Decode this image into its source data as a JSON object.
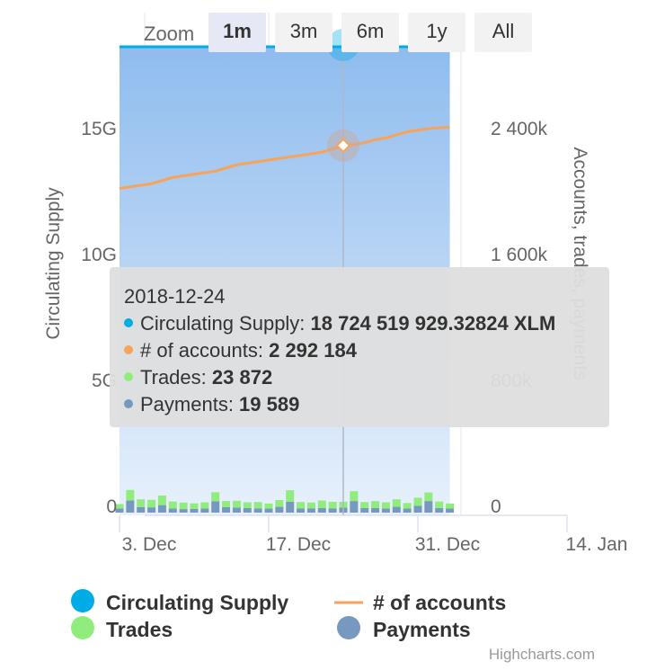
{
  "zoom": {
    "label": "Zoom",
    "buttons": [
      "1m",
      "3m",
      "6m",
      "1y",
      "All"
    ],
    "selected": "1m"
  },
  "colors": {
    "supply": "#00ace6",
    "accounts": "#f7a35c",
    "trades": "#90ed7d",
    "payments": "#7798bf",
    "area_top": "#8fbcee",
    "area_bottom": "#e8f1fc"
  },
  "chart_data": {
    "type": "line",
    "x_axis": {
      "ticks": [
        "3. Dec",
        "17. Dec",
        "31. Dec",
        "14. Jan"
      ],
      "range": [
        "2018-12-03",
        "2019-01-14"
      ]
    },
    "y_axis_left": {
      "title": "Circulating Supply",
      "ticks": [
        "0",
        "5G",
        "10G",
        "15G"
      ],
      "range": [
        0,
        20000000000
      ]
    },
    "y_axis_right": {
      "title": "Accounts, trades, payments",
      "ticks": [
        "0",
        "800k",
        "1 600k",
        "2 400k"
      ],
      "range": [
        0,
        3200000
      ]
    },
    "x": [
      "2018-12-03",
      "2018-12-04",
      "2018-12-05",
      "2018-12-06",
      "2018-12-07",
      "2018-12-08",
      "2018-12-09",
      "2018-12-10",
      "2018-12-11",
      "2018-12-12",
      "2018-12-13",
      "2018-12-14",
      "2018-12-15",
      "2018-12-16",
      "2018-12-17",
      "2018-12-18",
      "2018-12-19",
      "2018-12-20",
      "2018-12-21",
      "2018-12-22",
      "2018-12-23",
      "2018-12-24",
      "2018-12-25",
      "2018-12-26",
      "2018-12-27",
      "2018-12-28",
      "2018-12-29",
      "2018-12-30",
      "2018-12-31",
      "2019-01-01",
      "2019-01-02",
      "2019-01-03"
    ],
    "series": [
      {
        "name": "Circulating Supply",
        "axis": "left",
        "type": "area",
        "values": [
          18724000000,
          18724000000,
          18724000000,
          18724000000,
          18724000000,
          18724000000,
          18724000000,
          18724000000,
          18724000000,
          18724000000,
          18724000000,
          18724000000,
          18724000000,
          18724000000,
          18724000000,
          18724000000,
          18724000000,
          18724000000,
          18724000000,
          18724000000,
          18724000000,
          18724519929,
          18724600000,
          18724600000,
          18724600000,
          18724600000,
          18724600000,
          18724600000,
          18724600000,
          18724600000,
          18724600000,
          18724600000
        ]
      },
      {
        "name": "# of accounts",
        "axis": "right",
        "type": "line",
        "values": [
          2020000,
          2030000,
          2040000,
          2050000,
          2070000,
          2090000,
          2100000,
          2110000,
          2120000,
          2130000,
          2150000,
          2170000,
          2180000,
          2190000,
          2200000,
          2210000,
          2220000,
          2230000,
          2240000,
          2250000,
          2270000,
          2292184,
          2300000,
          2310000,
          2330000,
          2340000,
          2360000,
          2380000,
          2390000,
          2400000,
          2405000,
          2410000
        ]
      },
      {
        "name": "Trades",
        "axis": "right",
        "type": "column",
        "stacking": "normal",
        "values": [
          18000,
          42000,
          31000,
          30000,
          38000,
          28000,
          26000,
          22000,
          25000,
          36000,
          24000,
          27000,
          23000,
          25000,
          20000,
          27000,
          46000,
          26000,
          23000,
          30000,
          26000,
          23872,
          39000,
          24000,
          28000,
          25000,
          30000,
          22000,
          32000,
          34000,
          26000,
          20000
        ]
      },
      {
        "name": "Payments",
        "axis": "right",
        "type": "column",
        "stacking": "normal",
        "values": [
          16000,
          48000,
          22000,
          21000,
          30000,
          16000,
          14000,
          15000,
          16000,
          45000,
          22000,
          20000,
          18000,
          17000,
          16000,
          23000,
          43000,
          16000,
          17000,
          18000,
          17000,
          19589,
          46000,
          18000,
          18000,
          16000,
          23000,
          16000,
          27000,
          46000,
          18000,
          16000
        ]
      }
    ],
    "tooltip": {
      "date": "2018-12-24",
      "rows": [
        {
          "label": "Circulating Supply: ",
          "value": "18 724 519 929.32824 XLM"
        },
        {
          "label": "# of accounts: ",
          "value": "2 292 184"
        },
        {
          "label": "Trades: ",
          "value": "23 872"
        },
        {
          "label": "Payments: ",
          "value": "19 589"
        }
      ]
    },
    "legend": {
      "placement": "bottom",
      "items": [
        "Circulating Supply",
        "# of accounts",
        "Trades",
        "Payments"
      ]
    },
    "grid": true
  },
  "credits": "Highcharts.com"
}
